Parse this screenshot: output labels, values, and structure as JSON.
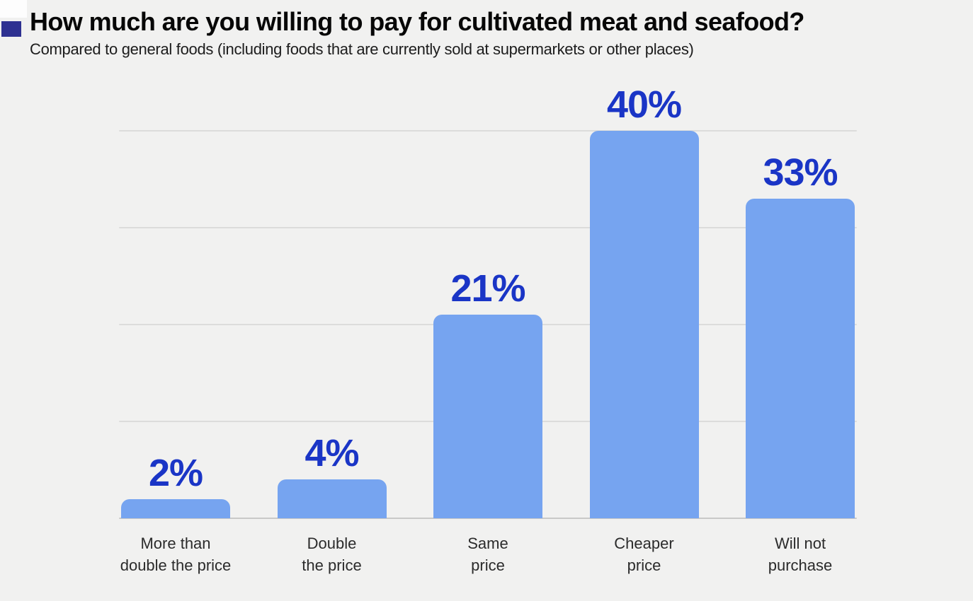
{
  "header": {
    "title": "How much are you willing to pay for cultivated meat and seafood?",
    "subtitle": "Compared to general foods (including foods that are currently sold at supermarkets or other places)",
    "marker_color": "#2E3191"
  },
  "chart_data": {
    "type": "bar",
    "title": "How much are you willing to pay for cultivated meat and seafood?",
    "subtitle": "Compared to general foods (including foods that are currently sold at supermarkets or other places)",
    "categories": [
      "More than\ndouble the price",
      "Double\nthe price",
      "Same\nprice",
      "Cheaper\nprice",
      "Will not\npurchase"
    ],
    "values": [
      2,
      4,
      21,
      40,
      33
    ],
    "value_labels": [
      "2%",
      "4%",
      "21%",
      "40%",
      "33%"
    ],
    "unit": "%",
    "ylim": [
      0,
      42
    ],
    "gridlines": [
      10,
      20,
      30,
      40
    ],
    "grid": true,
    "legend": false,
    "xlabel": "",
    "ylabel": "",
    "colors": {
      "background": "#F1F1F0",
      "bar": "#76A4F0",
      "value_label": "#1A35C6",
      "category_label": "#2B2B2B",
      "gridline": "#DCDCDB",
      "baseline": "#C9C9C8"
    }
  }
}
